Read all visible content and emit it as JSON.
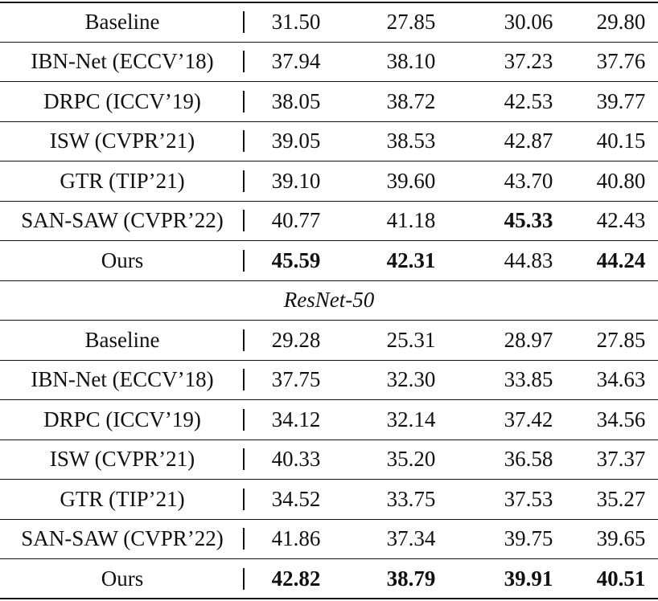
{
  "sections": [
    {
      "rows": [
        {
          "method": "Baseline",
          "values": [
            "31.50",
            "27.85",
            "30.06",
            "29.80"
          ],
          "bold": []
        },
        {
          "method": "IBN-Net (ECCV’18)",
          "values": [
            "37.94",
            "38.10",
            "37.23",
            "37.76"
          ],
          "bold": []
        },
        {
          "method": "DRPC (ICCV’19)",
          "values": [
            "38.05",
            "38.72",
            "42.53",
            "39.77"
          ],
          "bold": []
        },
        {
          "method": "ISW (CVPR’21)",
          "values": [
            "39.05",
            "38.53",
            "42.87",
            "40.15"
          ],
          "bold": []
        },
        {
          "method": "GTR (TIP’21)",
          "values": [
            "39.10",
            "39.60",
            "43.70",
            "40.80"
          ],
          "bold": []
        },
        {
          "method": "SAN-SAW (CVPR’22)",
          "values": [
            "40.77",
            "41.18",
            "45.33",
            "42.43"
          ],
          "bold": [
            2
          ]
        },
        {
          "method": "Ours",
          "values": [
            "45.59",
            "42.31",
            "44.83",
            "44.24"
          ],
          "bold": [
            0,
            1,
            3
          ]
        }
      ]
    },
    {
      "title": "ResNet-50",
      "rows": [
        {
          "method": "Baseline",
          "values": [
            "29.28",
            "25.31",
            "28.97",
            "27.85"
          ],
          "bold": []
        },
        {
          "method": "IBN-Net (ECCV’18)",
          "values": [
            "37.75",
            "32.30",
            "33.85",
            "34.63"
          ],
          "bold": []
        },
        {
          "method": "DRPC (ICCV’19)",
          "values": [
            "34.12",
            "32.14",
            "37.42",
            "34.56"
          ],
          "bold": []
        },
        {
          "method": "ISW (CVPR’21)",
          "values": [
            "40.33",
            "35.20",
            "36.58",
            "37.37"
          ],
          "bold": []
        },
        {
          "method": "GTR (TIP’21)",
          "values": [
            "34.52",
            "33.75",
            "37.53",
            "35.27"
          ],
          "bold": []
        },
        {
          "method": "SAN-SAW (CVPR’22)",
          "values": [
            "41.86",
            "37.34",
            "39.75",
            "39.65"
          ],
          "bold": []
        },
        {
          "method": "Ours",
          "values": [
            "42.82",
            "38.79",
            "39.91",
            "40.51"
          ],
          "bold": [
            0,
            1,
            2,
            3
          ]
        }
      ]
    }
  ]
}
